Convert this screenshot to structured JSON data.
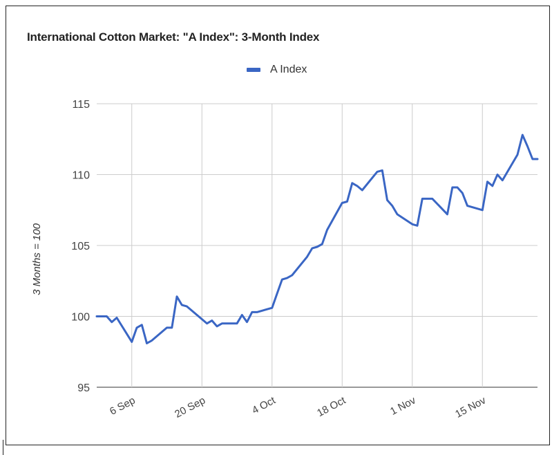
{
  "chart_data": {
    "type": "line",
    "title": "International Cotton Market: \"A Index\": 3-Month Index",
    "ylabel": "3 Months = 100",
    "xlabel": "",
    "ylim": [
      95,
      115
    ],
    "yticks": [
      95,
      100,
      105,
      110,
      115
    ],
    "xlim": [
      "2021-08-30",
      "2021-11-26"
    ],
    "xticks": [
      {
        "date": "2021-09-06",
        "label": "6 Sep"
      },
      {
        "date": "2021-09-20",
        "label": "20 Sep"
      },
      {
        "date": "2021-10-04",
        "label": "4 Oct"
      },
      {
        "date": "2021-10-18",
        "label": "18 Oct"
      },
      {
        "date": "2021-11-01",
        "label": "1 Nov"
      },
      {
        "date": "2021-11-15",
        "label": "15 Nov"
      }
    ],
    "legend": "top",
    "grid": true,
    "color": "#3a66c4",
    "series": [
      {
        "name": "A Index",
        "x": [
          "2021-08-30",
          "2021-08-31",
          "2021-09-01",
          "2021-09-02",
          "2021-09-03",
          "2021-09-06",
          "2021-09-07",
          "2021-09-08",
          "2021-09-09",
          "2021-09-10",
          "2021-09-13",
          "2021-09-14",
          "2021-09-15",
          "2021-09-16",
          "2021-09-17",
          "2021-09-20",
          "2021-09-21",
          "2021-09-22",
          "2021-09-23",
          "2021-09-24",
          "2021-09-27",
          "2021-09-28",
          "2021-09-29",
          "2021-09-30",
          "2021-10-01",
          "2021-10-04",
          "2021-10-05",
          "2021-10-06",
          "2021-10-07",
          "2021-10-08",
          "2021-10-11",
          "2021-10-12",
          "2021-10-13",
          "2021-10-14",
          "2021-10-15",
          "2021-10-18",
          "2021-10-19",
          "2021-10-20",
          "2021-10-21",
          "2021-10-22",
          "2021-10-25",
          "2021-10-26",
          "2021-10-27",
          "2021-10-28",
          "2021-10-29",
          "2021-11-01",
          "2021-11-02",
          "2021-11-03",
          "2021-11-04",
          "2021-11-05",
          "2021-11-08",
          "2021-11-09",
          "2021-11-10",
          "2021-11-11",
          "2021-11-12",
          "2021-11-15",
          "2021-11-16",
          "2021-11-17",
          "2021-11-18",
          "2021-11-19",
          "2021-11-22",
          "2021-11-23",
          "2021-11-24",
          "2021-11-25",
          "2021-11-26"
        ],
        "values": [
          100.0,
          100.0,
          100.0,
          99.6,
          99.9,
          98.2,
          99.2,
          99.4,
          98.1,
          98.3,
          99.2,
          99.2,
          101.4,
          100.8,
          100.7,
          99.8,
          99.5,
          99.7,
          99.3,
          99.5,
          99.5,
          100.1,
          99.6,
          100.3,
          100.3,
          100.6,
          101.6,
          102.6,
          102.7,
          102.9,
          104.2,
          104.8,
          104.9,
          105.1,
          106.1,
          108.0,
          108.1,
          109.4,
          109.2,
          108.9,
          110.2,
          110.3,
          108.2,
          107.8,
          107.2,
          106.5,
          106.4,
          108.3,
          108.3,
          108.3,
          107.2,
          109.1,
          109.1,
          108.7,
          107.8,
          107.5,
          109.5,
          109.2,
          110.0,
          109.6,
          111.4,
          112.8,
          112.0,
          111.1,
          111.1
        ]
      }
    ]
  }
}
